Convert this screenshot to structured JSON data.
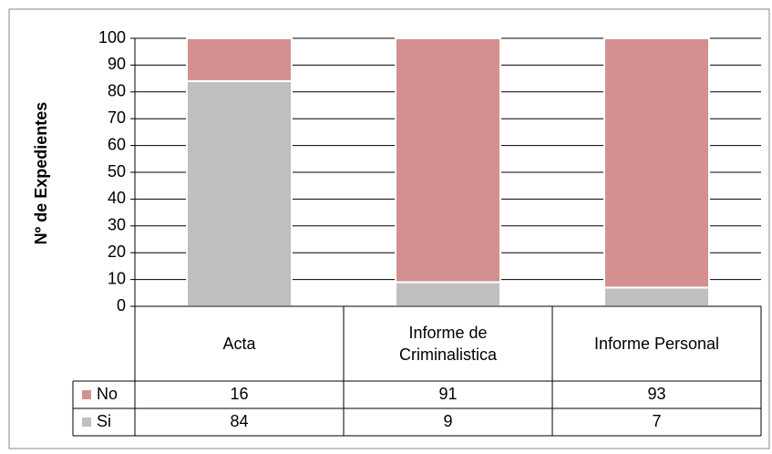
{
  "chart_data": {
    "type": "bar",
    "stacked": true,
    "y_label": "Nº de Expedientes",
    "categories": [
      "Acta",
      "Informe de Criminalistica",
      "Informe Personal"
    ],
    "series": [
      {
        "name": "No",
        "color": "#d49090",
        "values": [
          16,
          91,
          93
        ]
      },
      {
        "name": "Si",
        "color": "#bfbfbf",
        "values": [
          84,
          9,
          7
        ]
      }
    ],
    "ylim": [
      0,
      100
    ],
    "yticks": [
      0,
      10,
      20,
      30,
      40,
      50,
      60,
      70,
      80,
      90,
      100
    ],
    "grid": true,
    "data_table": true
  }
}
